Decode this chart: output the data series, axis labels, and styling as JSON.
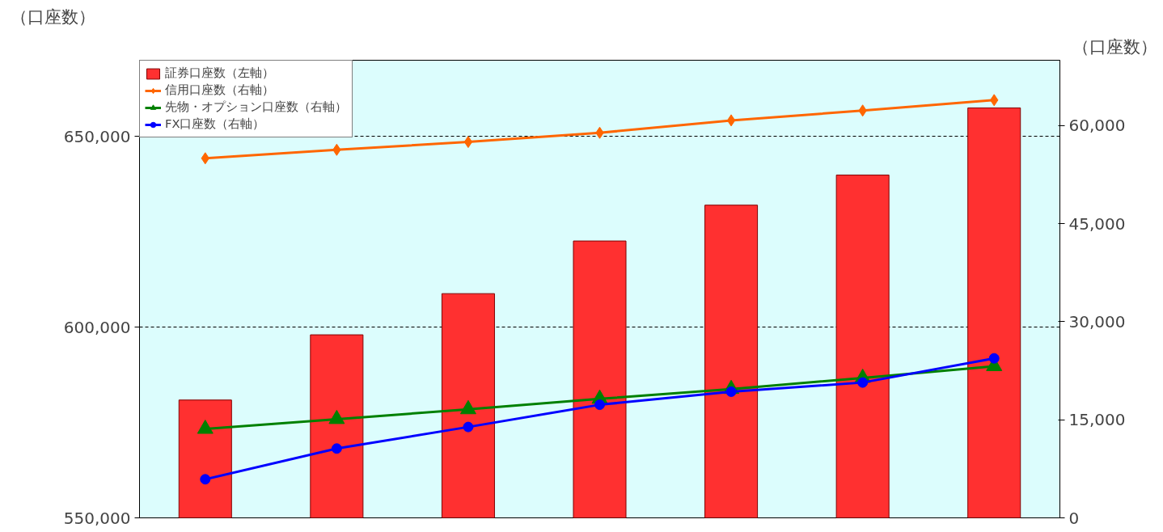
{
  "chart_data": {
    "type": "bar",
    "ylabel": "（口座数）",
    "y2label": "（口座数）",
    "categories": [
      null,
      null,
      null,
      null,
      null,
      null,
      null
    ],
    "series": [
      {
        "name": "証券口座数（左軸）",
        "color": "#ff3030",
        "values": [
          580900,
          598000,
          608800,
          622600,
          632000,
          639900,
          657500
        ]
      },
      {
        "name": "信用口座数（右軸）",
        "type": "line",
        "axis": "y2",
        "color": "#ff6600",
        "marker": "diamond",
        "values": [
          55000,
          56300,
          57500,
          58900,
          60800,
          62300,
          63900
        ]
      },
      {
        "name": "先物・オプション口座数（右軸）",
        "type": "line",
        "axis": "y2",
        "color": "#008000",
        "marker": "triangle",
        "values": [
          13600,
          15100,
          16600,
          18200,
          19700,
          21400,
          23200
        ]
      },
      {
        "name": "FX口座数（右軸）",
        "type": "line",
        "axis": "y2",
        "color": "#0000ff",
        "marker": "circle",
        "values": [
          5900,
          10600,
          13900,
          17300,
          19300,
          20700,
          24400
        ]
      }
    ],
    "ylim": [
      550000,
      670000
    ],
    "yticks": [
      {
        "value": 550000,
        "label": "550,000"
      },
      {
        "value": 600000,
        "label": "600,000"
      },
      {
        "value": 650000,
        "label": "650,000"
      }
    ],
    "y2lim": [
      0,
      70000
    ],
    "y2ticks": [
      0,
      {
        "value": 15000,
        "label": "15,000"
      },
      {
        "value": 30000,
        "label": "30,000"
      },
      {
        "value": 45000,
        "label": "45,000"
      },
      {
        "value": 60000,
        "label": "60,000"
      }
    ],
    "grid": "y",
    "line_style": "solid",
    "legend": "top left"
  }
}
